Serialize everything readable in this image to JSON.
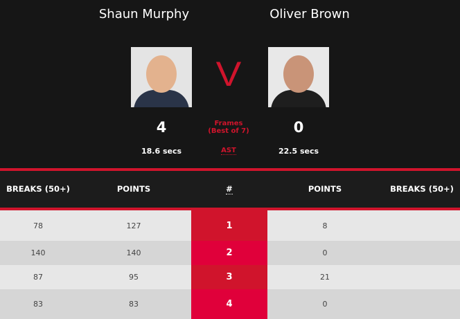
{
  "players": [
    {
      "name": "Shaun Murphy",
      "score": "4",
      "ast": "18.6 secs"
    },
    {
      "name": "Oliver Brown",
      "score": "0",
      "ast": "22.5 secs"
    }
  ],
  "vs": "V",
  "frames_label": "Frames",
  "best_of": "(Best of 7)",
  "ast_label": "AST",
  "headers": {
    "breaks_left": "BREAKS (50+)",
    "points_left": "POINTS",
    "hash": "#",
    "points_right": "POINTS",
    "breaks_right": "BREAKS (50+)"
  },
  "colors": {
    "accent": "#d0142c",
    "accent_alt": "#e0003a",
    "row_light": "#e7e7e7",
    "row_dark": "#d6d6d6"
  },
  "frames": [
    {
      "number": "1",
      "breaks_left": "78",
      "points_left": "127",
      "points_right": "8",
      "breaks_right": ""
    },
    {
      "number": "2",
      "breaks_left": "140",
      "points_left": "140",
      "points_right": "0",
      "breaks_right": ""
    },
    {
      "number": "3",
      "breaks_left": "87",
      "points_left": "95",
      "points_right": "21",
      "breaks_right": ""
    },
    {
      "number": "4",
      "breaks_left": "83",
      "points_left": "83",
      "points_right": "0",
      "breaks_right": ""
    }
  ]
}
